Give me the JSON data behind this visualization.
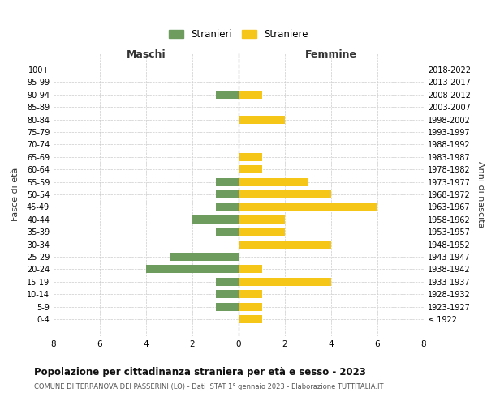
{
  "age_groups": [
    "100+",
    "95-99",
    "90-94",
    "85-89",
    "80-84",
    "75-79",
    "70-74",
    "65-69",
    "60-64",
    "55-59",
    "50-54",
    "45-49",
    "40-44",
    "35-39",
    "30-34",
    "25-29",
    "20-24",
    "15-19",
    "10-14",
    "5-9",
    "0-4"
  ],
  "birth_years": [
    "≤ 1922",
    "1923-1927",
    "1928-1932",
    "1933-1937",
    "1938-1942",
    "1943-1947",
    "1948-1952",
    "1953-1957",
    "1958-1962",
    "1963-1967",
    "1968-1972",
    "1973-1977",
    "1978-1982",
    "1983-1987",
    "1988-1992",
    "1993-1997",
    "1998-2002",
    "2003-2007",
    "2008-2012",
    "2013-2017",
    "2018-2022"
  ],
  "stranieri": [
    0,
    0,
    1,
    0,
    0,
    0,
    0,
    0,
    0,
    1,
    1,
    1,
    2,
    1,
    0,
    3,
    4,
    1,
    1,
    1,
    0
  ],
  "straniere": [
    0,
    0,
    1,
    0,
    2,
    0,
    0,
    1,
    1,
    3,
    4,
    6,
    2,
    2,
    4,
    0,
    1,
    4,
    1,
    1,
    1
  ],
  "color_stranieri": "#6e9b5e",
  "color_straniere": "#f5c518",
  "background_color": "#ffffff",
  "grid_color": "#cccccc",
  "title": "Popolazione per cittadinanza straniera per età e sesso - 2023",
  "subtitle": "COMUNE DI TERRANOVA DEI PASSERINI (LO) - Dati ISTAT 1° gennaio 2023 - Elaborazione TUTTITALIA.IT",
  "xlabel_left": "Maschi",
  "xlabel_right": "Femmine",
  "ylabel_left": "Fasce di età",
  "ylabel_right": "Anni di nascita",
  "xlim": 8,
  "legend_stranieri": "Stranieri",
  "legend_straniere": "Straniere"
}
